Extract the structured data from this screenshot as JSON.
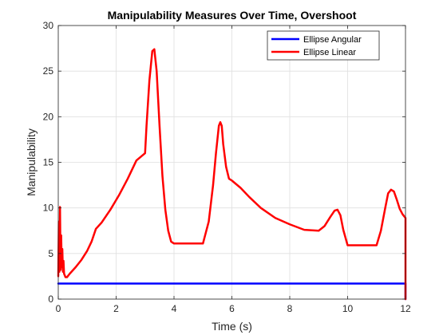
{
  "chart_data": {
    "type": "line",
    "title": "Manipulability Measures Over Time, Overshoot",
    "xlabel": "Time (s)",
    "ylabel": "Manipulability",
    "xlim": [
      0,
      12
    ],
    "ylim": [
      0,
      30
    ],
    "xticks": [
      "0",
      "2",
      "4",
      "6",
      "8",
      "10",
      "12"
    ],
    "yticks": [
      "0",
      "5",
      "10",
      "15",
      "20",
      "25",
      "30"
    ],
    "grid": true,
    "legend_position": "top-right",
    "series": [
      {
        "name": "Ellipse Angular",
        "color": "#0000ff",
        "x": [
          0,
          0.05,
          12,
          12
        ],
        "y": [
          1.7,
          1.7,
          1.7,
          0
        ]
      },
      {
        "name": "Ellipse Linear",
        "color": "#ff0000",
        "x": [
          0,
          0.02,
          0.04,
          0.06,
          0.08,
          0.1,
          0.12,
          0.14,
          0.16,
          0.18,
          0.2,
          0.25,
          0.3,
          0.4,
          0.6,
          0.8,
          1.0,
          1.15,
          1.3,
          1.5,
          1.8,
          2.1,
          2.4,
          2.7,
          3.0,
          3.05,
          3.15,
          3.25,
          3.32,
          3.4,
          3.5,
          3.6,
          3.7,
          3.8,
          3.9,
          4.0,
          4.3,
          4.7,
          5.0,
          5.2,
          5.35,
          5.45,
          5.55,
          5.6,
          5.65,
          5.7,
          5.8,
          5.9,
          6.0,
          6.3,
          6.6,
          7.0,
          7.5,
          8.0,
          8.5,
          9.0,
          9.2,
          9.4,
          9.55,
          9.65,
          9.75,
          9.85,
          10.0,
          10.5,
          10.7,
          11.0,
          11.15,
          11.3,
          11.4,
          11.5,
          11.6,
          11.7,
          11.8,
          11.9,
          12.0,
          12.0
        ],
        "y": [
          2.5,
          8.5,
          3.0,
          10.1,
          3.2,
          7.0,
          3.5,
          5.5,
          3.0,
          4.2,
          2.8,
          2.4,
          2.4,
          2.8,
          3.5,
          4.3,
          5.3,
          6.3,
          7.7,
          8.4,
          9.8,
          11.4,
          13.2,
          15.2,
          16.0,
          19.0,
          24.0,
          27.2,
          27.4,
          25.0,
          19.0,
          13.5,
          9.8,
          7.5,
          6.3,
          6.1,
          6.1,
          6.1,
          6.1,
          8.5,
          12.5,
          16.0,
          19.0,
          19.4,
          19.0,
          17.0,
          14.5,
          13.2,
          13.0,
          12.2,
          11.2,
          10.0,
          8.9,
          8.2,
          7.6,
          7.5,
          8.0,
          9.0,
          9.7,
          9.8,
          9.2,
          7.6,
          5.9,
          5.9,
          5.9,
          5.9,
          7.5,
          10.0,
          11.6,
          12.0,
          11.8,
          10.9,
          9.9,
          9.3,
          8.9,
          0
        ]
      }
    ]
  }
}
